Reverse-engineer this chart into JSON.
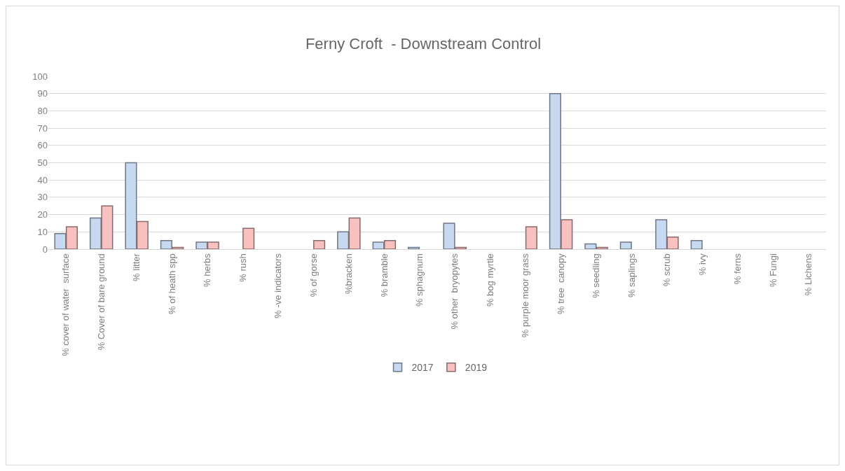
{
  "chart_data": {
    "type": "bar",
    "title": "Ferny Croft  - Downstream Control",
    "categories": [
      "% cover of water  surface",
      "% Cover of bare ground",
      "% litter",
      "% of heath spp",
      "% herbs",
      "% rush",
      "% -ve indicators",
      "% of gorse",
      "%bracken",
      "% bramble",
      "% sphagnum",
      "% other  bryopytes",
      "% bog myrtle",
      "% purple moor grass",
      "% tree  canopy",
      "% seedling",
      "% saplings",
      "% scrub",
      "% ivy",
      "% ferns",
      "% Fungi",
      "% Lichens"
    ],
    "series": [
      {
        "name": "2017",
        "color": "#c6d9f1",
        "values": [
          9,
          18,
          50,
          5,
          4,
          0,
          0,
          0,
          10,
          4,
          1,
          15,
          0,
          0,
          90,
          3,
          4,
          17,
          5,
          0,
          0,
          0
        ]
      },
      {
        "name": "2019",
        "color": "#f8c0bf",
        "values": [
          13,
          25,
          16,
          1,
          4,
          12,
          0,
          5,
          18,
          5,
          0,
          1,
          0,
          13,
          17,
          1,
          0,
          7,
          0,
          0,
          0,
          0
        ]
      }
    ],
    "ylim": [
      0,
      100
    ],
    "yticks": [
      0,
      10,
      20,
      30,
      40,
      50,
      60,
      70,
      80,
      90,
      100
    ],
    "grid": "y",
    "legend": "bottom"
  }
}
